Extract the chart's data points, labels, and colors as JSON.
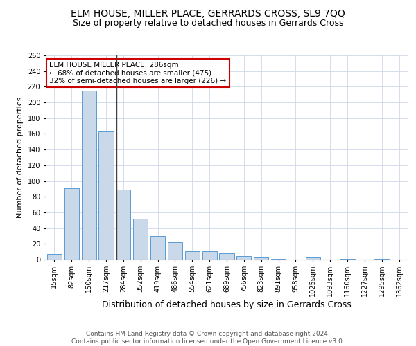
{
  "title": "ELM HOUSE, MILLER PLACE, GERRARDS CROSS, SL9 7QQ",
  "subtitle": "Size of property relative to detached houses in Gerrards Cross",
  "xlabel": "Distribution of detached houses by size in Gerrards Cross",
  "ylabel": "Number of detached properties",
  "bin_labels": [
    "15sqm",
    "82sqm",
    "150sqm",
    "217sqm",
    "284sqm",
    "352sqm",
    "419sqm",
    "486sqm",
    "554sqm",
    "621sqm",
    "689sqm",
    "756sqm",
    "823sqm",
    "891sqm",
    "958sqm",
    "1025sqm",
    "1093sqm",
    "1160sqm",
    "1227sqm",
    "1295sqm",
    "1362sqm"
  ],
  "values": [
    7,
    91,
    215,
    163,
    89,
    52,
    30,
    22,
    11,
    11,
    8,
    4,
    3,
    1,
    0,
    3,
    0,
    1,
    0,
    1,
    0
  ],
  "bar_color": "#c9d9ea",
  "bar_edge_color": "#5b9bd5",
  "vline_x": 3.62,
  "vline_color": "#404040",
  "annotation_text": "ELM HOUSE MILLER PLACE: 286sqm\n← 68% of detached houses are smaller (475)\n32% of semi-detached houses are larger (226) →",
  "annotation_box_color": "#ffffff",
  "annotation_box_edge": "#cc0000",
  "ylim": [
    0,
    260
  ],
  "yticks": [
    0,
    20,
    40,
    60,
    80,
    100,
    120,
    140,
    160,
    180,
    200,
    220,
    240,
    260
  ],
  "grid_color": "#d0d8e8",
  "footer_text": "Contains HM Land Registry data © Crown copyright and database right 2024.\nContains public sector information licensed under the Open Government Licence v3.0.",
  "title_fontsize": 10,
  "subtitle_fontsize": 9,
  "xlabel_fontsize": 9,
  "ylabel_fontsize": 8,
  "tick_fontsize": 7,
  "annotation_fontsize": 7.5,
  "footer_fontsize": 6.5
}
